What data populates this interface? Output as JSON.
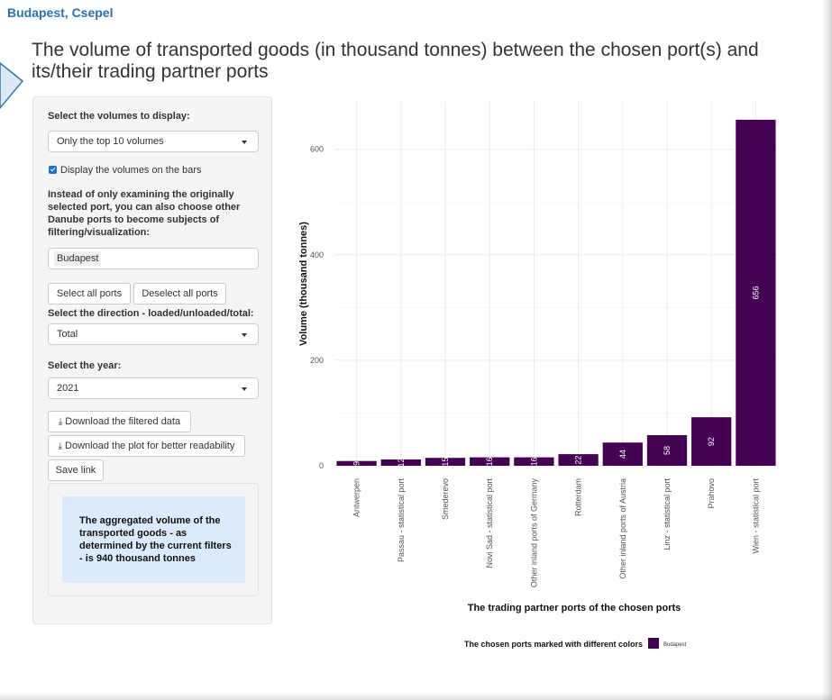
{
  "breadcrumb": "Budapest, Csepel",
  "heading": "The volume of transported goods (in thousand tonnes) between the chosen port(s) and its/their trading partner ports",
  "sidebar": {
    "volumes_label": "Select the volumes to display:",
    "volumes_value": "Only the top 10 volumes",
    "display_checkbox_label": "Display the volumes on the bars",
    "display_checked": true,
    "ports_paragraph": "Instead of only examining the originally selected port, you can also choose other Danube ports to become subjects of filtering/visualization:",
    "ports_selected": [
      "Budapest"
    ],
    "select_all_label": "Select all ports",
    "deselect_all_label": "Deselect all ports",
    "direction_label": "Select the direction - loaded/unloaded/total:",
    "direction_value": "Total",
    "year_label": "Select the year:",
    "year_value": "2021",
    "download_data_label": "Download the filtered data",
    "download_plot_label": "Download the plot for better readability",
    "save_link_label": "Save link",
    "aggregate_text": "The aggregated volume of the transported goods - as determined by the current filters - is 940 thousand tonnes"
  },
  "colors": {
    "bar": "#440154",
    "link": "#2a72b8",
    "accent": "#1f6fd1",
    "info_bg": "#dcebfb"
  },
  "icons": {
    "download": "download-icon",
    "caret": "caret-down-icon",
    "callout": "callout-arrow-shape"
  },
  "chart_data": {
    "type": "bar",
    "xlabel": "The trading partner ports of the chosen ports",
    "ylabel": "Volume (thousand tonnes)",
    "categories": [
      "Antwerpen",
      "Passau - statistical port",
      "Smederevo",
      "Novi Sad - statistical port",
      "Other inland ports of Germany",
      "Rotterdam",
      "Other inland ports of Austria",
      "Linz - statistical port",
      "Prahovo",
      "Wien - statistical port"
    ],
    "series": [
      {
        "name": "Budapest",
        "values": [
          9,
          12,
          15,
          16,
          16,
          22,
          44,
          58,
          92,
          656
        ]
      }
    ],
    "value_labels": [
      "9",
      "12",
      "15",
      "16",
      "16",
      "22",
      "44",
      "58",
      "92",
      "656"
    ],
    "yticks": [
      0,
      200,
      400,
      600
    ],
    "ylim": [
      0,
      690
    ],
    "grid": true,
    "legend_title": "The chosen ports marked with different colors",
    "legend_position": "bottom"
  }
}
